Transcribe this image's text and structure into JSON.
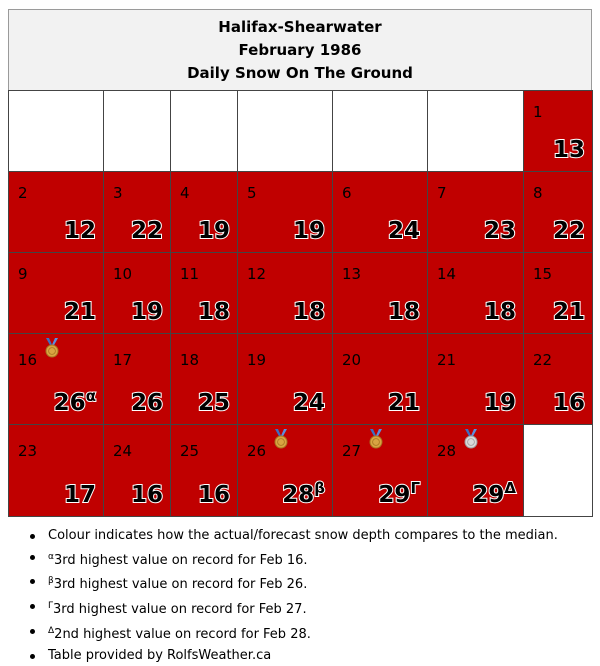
{
  "header": {
    "station": "Halifax-Shearwater",
    "month": "February 1986",
    "subtitle": "Daily Snow On The Ground"
  },
  "colors": {
    "above_median": "#c00000",
    "empty": "#ffffff",
    "header_bg": "#f2f2f2"
  },
  "weeks": [
    [
      null,
      null,
      null,
      null,
      null,
      null,
      {
        "day": "1",
        "value": "13"
      }
    ],
    [
      {
        "day": "2",
        "value": "12"
      },
      {
        "day": "3",
        "value": "22"
      },
      {
        "day": "4",
        "value": "19"
      },
      {
        "day": "5",
        "value": "19"
      },
      {
        "day": "6",
        "value": "24"
      },
      {
        "day": "7",
        "value": "23"
      },
      {
        "day": "8",
        "value": "22"
      }
    ],
    [
      {
        "day": "9",
        "value": "21"
      },
      {
        "day": "10",
        "value": "19"
      },
      {
        "day": "11",
        "value": "18"
      },
      {
        "day": "12",
        "value": "18"
      },
      {
        "day": "13",
        "value": "18"
      },
      {
        "day": "14",
        "value": "18"
      },
      {
        "day": "15",
        "value": "21"
      }
    ],
    [
      {
        "day": "16",
        "value": "26",
        "sup": "α",
        "medal": "bronze-medal-icon"
      },
      {
        "day": "17",
        "value": "26"
      },
      {
        "day": "18",
        "value": "25"
      },
      {
        "day": "19",
        "value": "24"
      },
      {
        "day": "20",
        "value": "21"
      },
      {
        "day": "21",
        "value": "19"
      },
      {
        "day": "22",
        "value": "16"
      }
    ],
    [
      {
        "day": "23",
        "value": "17"
      },
      {
        "day": "24",
        "value": "16"
      },
      {
        "day": "25",
        "value": "16"
      },
      {
        "day": "26",
        "value": "28",
        "sup": "β",
        "medal": "bronze-medal-icon"
      },
      {
        "day": "27",
        "value": "29",
        "sup": "Γ",
        "medal": "bronze-medal-icon"
      },
      {
        "day": "28",
        "value": "29",
        "sup": "Δ",
        "medal": "silver-medal-icon"
      },
      null
    ]
  ],
  "notes": [
    {
      "sup": "",
      "text": "Colour indicates how the actual/forecast snow depth compares to the median."
    },
    {
      "sup": "α",
      "text": "3rd highest value on record for Feb 16."
    },
    {
      "sup": "β",
      "text": "3rd highest value on record for Feb 26."
    },
    {
      "sup": "Γ",
      "text": "3rd highest value on record for Feb 27."
    },
    {
      "sup": "Δ",
      "text": "2nd highest value on record for Feb 28."
    },
    {
      "sup": "",
      "text": "Table provided by RolfsWeather.ca"
    }
  ]
}
